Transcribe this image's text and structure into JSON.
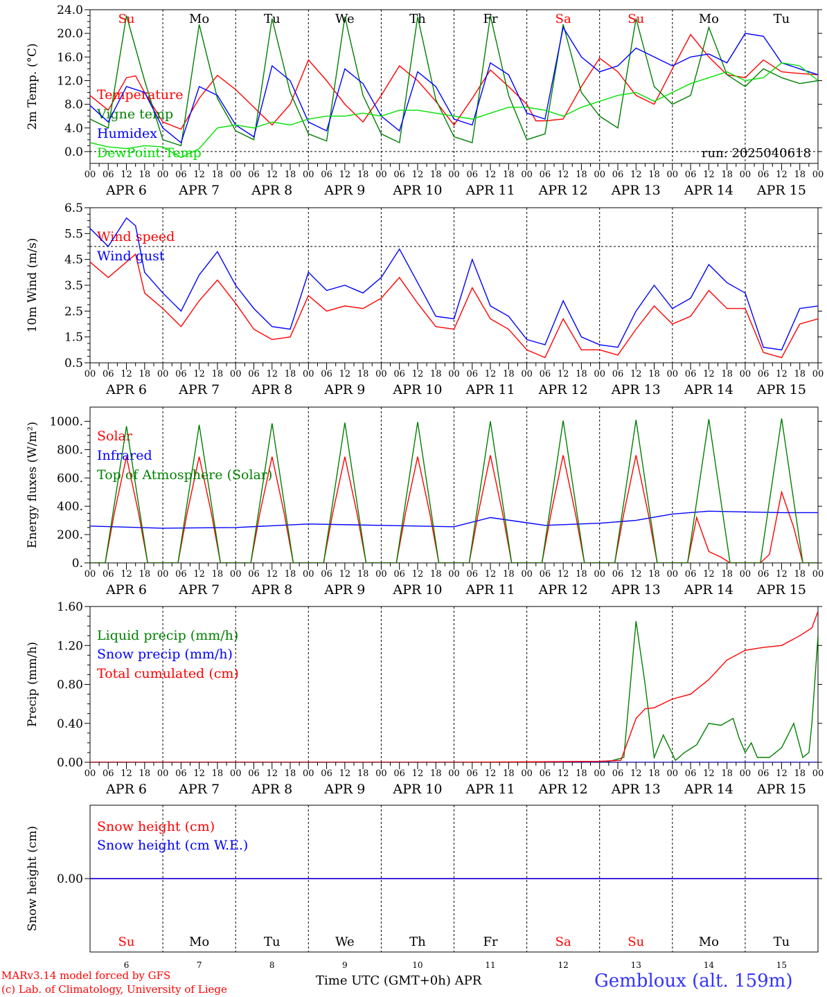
{
  "footer": {
    "model_line": "MARv3.14 model forced by GFS",
    "copyright_line": "(c) Lab. of Climatology, University of Liege",
    "xlabel": "Time UTC (GMT+0h)",
    "month": "APR",
    "station": "Gembloux (alt. 159m)"
  },
  "days": {
    "dates": [
      "APR  6",
      "APR  7",
      "APR  8",
      "APR  9",
      "APR 10",
      "APR 11",
      "APR 12",
      "APR 13",
      "APR 14",
      "APR 15"
    ],
    "day_numbers": [
      "6",
      "7",
      "8",
      "9",
      "10",
      "11",
      "12",
      "13",
      "14",
      "15"
    ],
    "weekdays": [
      "Su",
      "Mo",
      "Tu",
      "We",
      "Th",
      "Fr",
      "Sa",
      "Su",
      "Mo",
      "Tu"
    ],
    "weekend_flags": [
      true,
      false,
      false,
      false,
      false,
      false,
      true,
      true,
      false,
      false
    ],
    "hour_ticks": [
      "00",
      "06",
      "12",
      "18"
    ],
    "end_tick": "00"
  },
  "colors": {
    "red": "#ff0000",
    "green": "#007f00",
    "blue": "#0000ff",
    "lightgreen": "#00e000",
    "weekend": "#ff0000",
    "weekday": "#000000",
    "station": "#3333ff"
  },
  "chart_data": [
    {
      "type": "line",
      "ylabel": "2m Temp. (°C)",
      "ylim": [
        -2.0,
        24.0
      ],
      "yticks": [
        "0.0",
        "4.0",
        "8.0",
        "12.0",
        "16.0",
        "20.0",
        "24.0"
      ],
      "ref_line": 0.0,
      "x_unit": "hours since APR 6 00 UTC",
      "annotation": "run: 2025040618",
      "series": [
        {
          "name": "Temperature",
          "color": "#ff0000",
          "x": [
            0,
            6,
            12,
            15,
            18,
            24,
            30,
            36,
            42,
            48,
            54,
            60,
            66,
            72,
            78,
            84,
            90,
            96,
            102,
            108,
            114,
            120,
            126,
            132,
            138,
            144,
            147,
            150,
            156,
            162,
            168,
            174,
            180,
            186,
            192,
            198,
            204,
            210,
            216,
            222,
            228,
            234,
            240
          ],
          "y": [
            9.5,
            7.0,
            12.5,
            12.8,
            10.0,
            5.0,
            3.8,
            9.0,
            12.9,
            10.5,
            7.5,
            4.5,
            8.0,
            15.5,
            12.0,
            8.0,
            5.0,
            9.5,
            14.5,
            12.0,
            8.5,
            4.5,
            9.0,
            13.8,
            11.0,
            8.0,
            5.2,
            5.2,
            5.5,
            11.0,
            15.8,
            13.5,
            9.5,
            8.0,
            14.0,
            19.8,
            16.0,
            13.0,
            12.5,
            15.5,
            13.5,
            13.2,
            13.0
          ]
        },
        {
          "name": "Vigne temp",
          "color": "#007f00",
          "x": [
            0,
            6,
            12,
            18,
            24,
            30,
            36,
            42,
            48,
            54,
            60,
            66,
            72,
            78,
            84,
            90,
            96,
            102,
            108,
            114,
            120,
            126,
            132,
            138,
            144,
            150,
            156,
            162,
            168,
            174,
            180,
            186,
            192,
            198,
            204,
            210,
            216,
            222,
            228,
            234,
            240
          ],
          "y": [
            5.5,
            4.0,
            23.0,
            12.0,
            2.0,
            1.0,
            21.5,
            9.0,
            3.5,
            2.0,
            22.5,
            10.0,
            3.0,
            1.8,
            22.8,
            9.5,
            3.0,
            1.5,
            22.8,
            8.8,
            2.5,
            1.5,
            23.0,
            9.5,
            2.0,
            3.0,
            21.5,
            10.0,
            6.0,
            4.0,
            22.5,
            11.0,
            8.0,
            9.5,
            21.0,
            13.0,
            11.0,
            14.0,
            12.5,
            11.5,
            12.0
          ]
        },
        {
          "name": "Humidex",
          "color": "#0000ff",
          "x": [
            0,
            6,
            12,
            18,
            24,
            30,
            36,
            42,
            48,
            54,
            60,
            66,
            72,
            78,
            84,
            90,
            96,
            102,
            108,
            114,
            120,
            126,
            132,
            138,
            144,
            150,
            156,
            162,
            168,
            174,
            180,
            186,
            192,
            198,
            204,
            210,
            216,
            222,
            228,
            234,
            240
          ],
          "y": [
            7.8,
            5.0,
            11.0,
            10.0,
            4.0,
            1.5,
            11.0,
            9.5,
            4.5,
            2.5,
            14.5,
            12.0,
            5.0,
            3.5,
            14.0,
            11.5,
            6.0,
            3.5,
            13.5,
            11.0,
            5.5,
            4.5,
            15.0,
            13.0,
            6.5,
            5.5,
            21.0,
            16.0,
            13.5,
            14.5,
            17.5,
            16.0,
            14.5,
            16.0,
            16.5,
            15.0,
            20.0,
            19.5,
            15.0,
            14.0,
            13.0
          ]
        },
        {
          "name": "DewPoint Temp",
          "color": "#00e000",
          "x": [
            0,
            6,
            12,
            18,
            24,
            30,
            36,
            42,
            48,
            54,
            60,
            66,
            72,
            78,
            84,
            90,
            96,
            102,
            108,
            114,
            120,
            126,
            132,
            138,
            144,
            150,
            156,
            162,
            168,
            174,
            180,
            186,
            192,
            198,
            204,
            210,
            216,
            222,
            228,
            234,
            240
          ],
          "y": [
            1.5,
            0.8,
            0.5,
            1.0,
            0.8,
            -1.0,
            0.5,
            4.0,
            4.5,
            4.0,
            5.0,
            4.5,
            5.5,
            6.0,
            6.0,
            6.5,
            6.0,
            7.0,
            7.0,
            6.5,
            6.0,
            5.5,
            6.5,
            7.5,
            7.5,
            7.0,
            6.0,
            7.5,
            8.5,
            9.5,
            10.0,
            8.5,
            10.0,
            11.5,
            12.5,
            13.5,
            12.0,
            12.5,
            15.0,
            14.5,
            12.0
          ]
        }
      ]
    },
    {
      "type": "line",
      "ylabel": "10m Wind (m/s)",
      "ylim": [
        0.5,
        6.5
      ],
      "yticks": [
        "0.5",
        "1.5",
        "2.5",
        "3.5",
        "4.5",
        "5.5",
        "6.5"
      ],
      "ref_line": 5.0,
      "x_unit": "hours since APR 6 00 UTC",
      "series": [
        {
          "name": "Wind speed",
          "color": "#ff0000",
          "x": [
            0,
            6,
            12,
            15,
            18,
            24,
            30,
            36,
            42,
            48,
            54,
            60,
            66,
            72,
            78,
            84,
            90,
            96,
            102,
            108,
            114,
            120,
            126,
            132,
            138,
            144,
            150,
            156,
            162,
            168,
            174,
            180,
            186,
            192,
            198,
            204,
            210,
            216,
            222,
            228,
            234,
            240
          ],
          "y": [
            4.4,
            3.8,
            4.4,
            4.7,
            3.2,
            2.6,
            1.9,
            2.9,
            3.7,
            2.8,
            1.8,
            1.4,
            1.5,
            3.1,
            2.5,
            2.7,
            2.6,
            3.0,
            3.8,
            2.8,
            1.9,
            1.8,
            3.4,
            2.2,
            1.8,
            1.0,
            0.7,
            2.2,
            1.0,
            1.0,
            0.8,
            1.8,
            2.7,
            2.0,
            2.3,
            3.3,
            2.6,
            2.6,
            0.9,
            0.7,
            2.0,
            2.2
          ]
        },
        {
          "name": "Wind gust",
          "color": "#0000ff",
          "x": [
            0,
            6,
            12,
            15,
            18,
            24,
            30,
            36,
            42,
            48,
            54,
            60,
            66,
            72,
            78,
            84,
            90,
            96,
            102,
            108,
            114,
            120,
            126,
            132,
            138,
            144,
            150,
            156,
            162,
            168,
            174,
            180,
            186,
            192,
            198,
            204,
            210,
            216,
            222,
            228,
            234,
            240
          ],
          "y": [
            5.7,
            5.0,
            6.1,
            5.8,
            4.0,
            3.2,
            2.5,
            3.9,
            4.8,
            3.5,
            2.6,
            1.9,
            1.8,
            4.0,
            3.3,
            3.5,
            3.2,
            3.8,
            4.9,
            3.6,
            2.3,
            2.2,
            4.5,
            2.7,
            2.3,
            1.4,
            1.2,
            2.9,
            1.5,
            1.2,
            1.1,
            2.5,
            3.5,
            2.6,
            3.0,
            4.3,
            3.6,
            3.2,
            1.1,
            1.0,
            2.6,
            2.7
          ]
        }
      ]
    },
    {
      "type": "line",
      "ylabel": "Energy fluxes (W/m²)",
      "ylim": [
        0,
        1100
      ],
      "yticks": [
        "0.",
        "200.",
        "400.",
        "600.",
        "800.",
        "1000."
      ],
      "x_unit": "hours since APR 6 00 UTC",
      "series": [
        {
          "name": "Solar",
          "color": "#ff0000",
          "x": [
            0,
            5,
            8,
            12,
            16,
            19,
            24,
            29,
            32,
            36,
            40,
            43,
            48,
            53,
            56,
            60,
            64,
            67,
            72,
            77,
            80,
            84,
            88,
            91,
            96,
            101,
            104,
            108,
            112,
            115,
            120,
            125,
            128,
            132,
            136,
            139,
            144,
            149,
            152,
            156,
            160,
            163,
            168,
            173,
            176,
            180,
            184,
            187,
            192,
            197,
            200,
            204,
            208,
            211,
            216,
            221,
            224,
            228,
            232,
            235,
            240
          ],
          "y": [
            0,
            0,
            350,
            750,
            350,
            0,
            0,
            0,
            350,
            750,
            350,
            0,
            0,
            0,
            350,
            750,
            350,
            0,
            0,
            0,
            350,
            750,
            350,
            0,
            0,
            0,
            350,
            750,
            350,
            0,
            0,
            0,
            350,
            760,
            350,
            0,
            0,
            0,
            350,
            760,
            350,
            0,
            0,
            0,
            350,
            760,
            350,
            0,
            0,
            0,
            320,
            80,
            40,
            0,
            0,
            0,
            60,
            500,
            250,
            0,
            0
          ]
        },
        {
          "name": "Infrared",
          "color": "#0000ff",
          "x": [
            0,
            24,
            48,
            72,
            96,
            120,
            132,
            150,
            168,
            180,
            192,
            204,
            216,
            228,
            240
          ],
          "y": [
            260,
            245,
            250,
            275,
            265,
            255,
            320,
            265,
            280,
            300,
            345,
            365,
            360,
            355,
            355
          ]
        },
        {
          "name": "Top of Atmosphere (Solar)",
          "color": "#007f00",
          "x": [
            0,
            5,
            12,
            19,
            24,
            29,
            36,
            43,
            48,
            53,
            60,
            67,
            72,
            77,
            84,
            91,
            96,
            101,
            108,
            115,
            120,
            125,
            132,
            139,
            144,
            149,
            156,
            163,
            168,
            173,
            180,
            187,
            192,
            197,
            204,
            211,
            216,
            221,
            228,
            235,
            240
          ],
          "y": [
            0,
            0,
            965,
            0,
            0,
            0,
            975,
            0,
            0,
            0,
            985,
            0,
            0,
            0,
            990,
            0,
            0,
            0,
            995,
            0,
            0,
            0,
            1000,
            0,
            0,
            0,
            1005,
            0,
            0,
            0,
            1010,
            0,
            0,
            0,
            1015,
            0,
            0,
            0,
            1020,
            0,
            0
          ]
        }
      ]
    },
    {
      "type": "line",
      "ylabel": "Precip (mm/h)",
      "ylim": [
        0,
        1.6
      ],
      "yticks": [
        "0.00",
        "0.40",
        "0.80",
        "1.20",
        "1.60"
      ],
      "x_unit": "hours since APR 6 00 UTC",
      "series": [
        {
          "name": "Liquid precip (mm/h)",
          "color": "#007f00",
          "x": [
            0,
            170,
            176,
            180,
            183,
            186,
            189,
            193,
            196,
            200,
            204,
            208,
            212,
            214,
            216,
            218,
            220,
            224,
            228,
            232,
            235,
            237,
            238,
            240
          ],
          "y": [
            0,
            0,
            0.05,
            1.45,
            0.8,
            0.05,
            0.28,
            0.02,
            0.1,
            0.18,
            0.4,
            0.38,
            0.45,
            0.25,
            0.1,
            0.2,
            0.05,
            0.05,
            0.15,
            0.4,
            0.05,
            0.1,
            0.4,
            1.3
          ]
        },
        {
          "name": "Snow precip (mm/h)",
          "color": "#0000ff",
          "x": [
            0,
            240
          ],
          "y": [
            0,
            0
          ]
        },
        {
          "name": "Total cumulated (cm)",
          "color": "#ff0000",
          "x": [
            0,
            120,
            168,
            175,
            180,
            183,
            186,
            192,
            198,
            204,
            210,
            216,
            222,
            228,
            234,
            238,
            240
          ],
          "y": [
            0,
            0,
            0.01,
            0.02,
            0.45,
            0.55,
            0.56,
            0.65,
            0.7,
            0.85,
            1.05,
            1.15,
            1.18,
            1.2,
            1.3,
            1.38,
            1.55
          ]
        }
      ]
    },
    {
      "type": "line",
      "ylabel": "Snow height (cm)",
      "yticks": [
        "0.00"
      ],
      "x_unit": "hours since APR 6 00 UTC",
      "series": [
        {
          "name": "Snow height (cm)",
          "color": "#ff0000",
          "x": [
            0,
            240
          ],
          "y": [
            0,
            0
          ]
        },
        {
          "name": "Snow height (cm W.E.)",
          "color": "#0000ff",
          "x": [
            0,
            240
          ],
          "y": [
            0,
            0
          ]
        }
      ]
    }
  ]
}
